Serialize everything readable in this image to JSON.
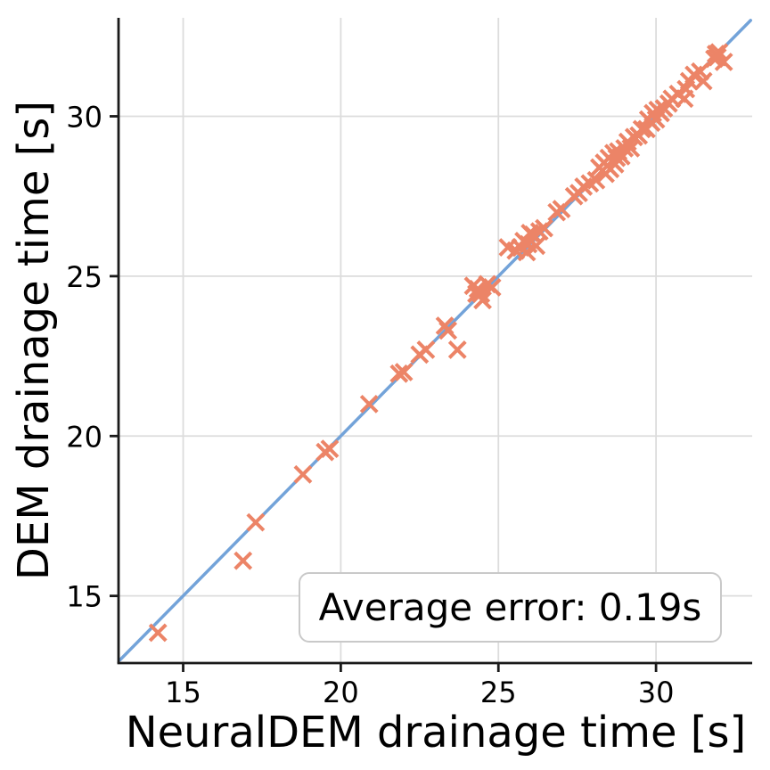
{
  "chart_data": {
    "type": "scatter",
    "title": "",
    "xlabel": "NeuralDEM drainage time [s]",
    "ylabel": "DEM drainage time [s]",
    "xlim": [
      12.95,
      33.05
    ],
    "ylim": [
      12.9,
      33.08
    ],
    "x_ticks": [
      15,
      20,
      25,
      30
    ],
    "y_ticks": [
      15,
      20,
      25,
      30
    ],
    "grid": true,
    "legend": "none",
    "annotation": "Average error: 0.19s",
    "colors": {
      "marker": "#EC8467",
      "line": "#73A3D9",
      "grid": "#DCDCDC",
      "spine": "#1A1A1A",
      "text": "#000000",
      "annotation_border": "#C9C9C9"
    },
    "identity_line": {
      "from": [
        13,
        13
      ],
      "to": [
        33,
        33
      ]
    },
    "marker": {
      "shape": "x",
      "size": 18,
      "stroke_width": 4
    },
    "series": [
      {
        "name": "drainage-times",
        "points": [
          [
            14.2,
            13.85
          ],
          [
            16.9,
            16.1
          ],
          [
            17.3,
            17.3
          ],
          [
            18.8,
            18.8
          ],
          [
            19.5,
            19.5
          ],
          [
            19.65,
            19.6
          ],
          [
            20.9,
            21.0
          ],
          [
            21.85,
            21.95
          ],
          [
            22.0,
            22.0
          ],
          [
            22.5,
            22.55
          ],
          [
            22.7,
            22.7
          ],
          [
            23.3,
            23.45
          ],
          [
            23.4,
            23.3
          ],
          [
            23.7,
            22.7
          ],
          [
            24.2,
            24.7
          ],
          [
            24.3,
            24.45
          ],
          [
            24.35,
            24.6
          ],
          [
            24.45,
            24.45
          ],
          [
            24.5,
            24.25
          ],
          [
            24.65,
            24.75
          ],
          [
            24.8,
            24.65
          ],
          [
            25.3,
            25.9
          ],
          [
            25.55,
            25.8
          ],
          [
            25.7,
            25.9
          ],
          [
            25.8,
            26.1
          ],
          [
            25.9,
            25.75
          ],
          [
            25.95,
            26.0
          ],
          [
            26.0,
            26.35
          ],
          [
            26.1,
            26.3
          ],
          [
            26.2,
            25.95
          ],
          [
            26.3,
            26.4
          ],
          [
            26.45,
            26.5
          ],
          [
            26.85,
            27.0
          ],
          [
            27.0,
            27.1
          ],
          [
            27.4,
            27.5
          ],
          [
            27.55,
            27.6
          ],
          [
            27.7,
            27.8
          ],
          [
            27.9,
            27.9
          ],
          [
            28.1,
            28.0
          ],
          [
            28.2,
            28.4
          ],
          [
            28.3,
            28.3
          ],
          [
            28.35,
            28.55
          ],
          [
            28.4,
            28.2
          ],
          [
            28.45,
            28.45
          ],
          [
            28.5,
            28.7
          ],
          [
            28.55,
            28.35
          ],
          [
            28.6,
            28.6
          ],
          [
            28.65,
            28.85
          ],
          [
            28.7,
            28.5
          ],
          [
            28.75,
            28.7
          ],
          [
            28.8,
            28.9
          ],
          [
            28.9,
            28.75
          ],
          [
            29.0,
            29.0
          ],
          [
            29.1,
            29.2
          ],
          [
            29.2,
            29.0
          ],
          [
            29.3,
            29.35
          ],
          [
            29.45,
            29.4
          ],
          [
            29.55,
            29.6
          ],
          [
            29.7,
            29.6
          ],
          [
            29.75,
            29.9
          ],
          [
            29.85,
            29.8
          ],
          [
            29.9,
            30.1
          ],
          [
            30.0,
            29.9
          ],
          [
            30.05,
            30.2
          ],
          [
            30.15,
            30.1
          ],
          [
            30.25,
            30.25
          ],
          [
            30.4,
            30.4
          ],
          [
            30.5,
            30.55
          ],
          [
            30.7,
            30.7
          ],
          [
            30.9,
            30.55
          ],
          [
            30.95,
            30.85
          ],
          [
            31.05,
            31.1
          ],
          [
            31.2,
            31.3
          ],
          [
            31.4,
            31.4
          ],
          [
            31.5,
            31.1
          ],
          [
            31.85,
            31.8
          ],
          [
            31.9,
            31.95
          ],
          [
            31.95,
            31.85
          ],
          [
            32.0,
            32.0
          ],
          [
            32.15,
            31.7
          ]
        ]
      }
    ]
  }
}
